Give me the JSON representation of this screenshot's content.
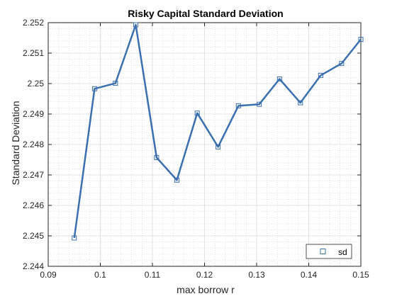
{
  "chart_data": {
    "type": "line",
    "title": "Risky Capital Standard Deviation",
    "xlabel": "max borrow r",
    "ylabel": "Standard Deviation",
    "xlim": [
      0.09,
      0.15
    ],
    "ylim": [
      2.244,
      2.252
    ],
    "xticks": [
      0.09,
      0.1,
      0.11,
      0.12,
      0.13,
      0.14,
      0.15
    ],
    "xtick_labels": [
      "0.09",
      "0.1",
      "0.11",
      "0.12",
      "0.13",
      "0.14",
      "0.15"
    ],
    "yticks": [
      2.244,
      2.245,
      2.246,
      2.247,
      2.248,
      2.249,
      2.25,
      2.251,
      2.252
    ],
    "ytick_labels": [
      "2.244",
      "2.245",
      "2.246",
      "2.247",
      "2.248",
      "2.249",
      "2.25",
      "2.251",
      "2.252"
    ],
    "grid": true,
    "minor_grid": true,
    "legend_position": "bottom-right",
    "series": [
      {
        "name": "sd",
        "color": "#3a6fb0",
        "marker": "square",
        "x": [
          0.095,
          0.0989,
          0.1029,
          0.1068,
          0.1108,
          0.1147,
          0.1186,
          0.1226,
          0.1265,
          0.1305,
          0.1344,
          0.1384,
          0.1423,
          0.1463,
          0.15
        ],
        "y": [
          2.24493,
          2.24983,
          2.25001,
          2.25193,
          2.24757,
          2.24683,
          2.24903,
          2.24792,
          2.24927,
          2.24932,
          2.25015,
          2.24937,
          2.25027,
          2.25066,
          2.25145
        ]
      }
    ]
  }
}
